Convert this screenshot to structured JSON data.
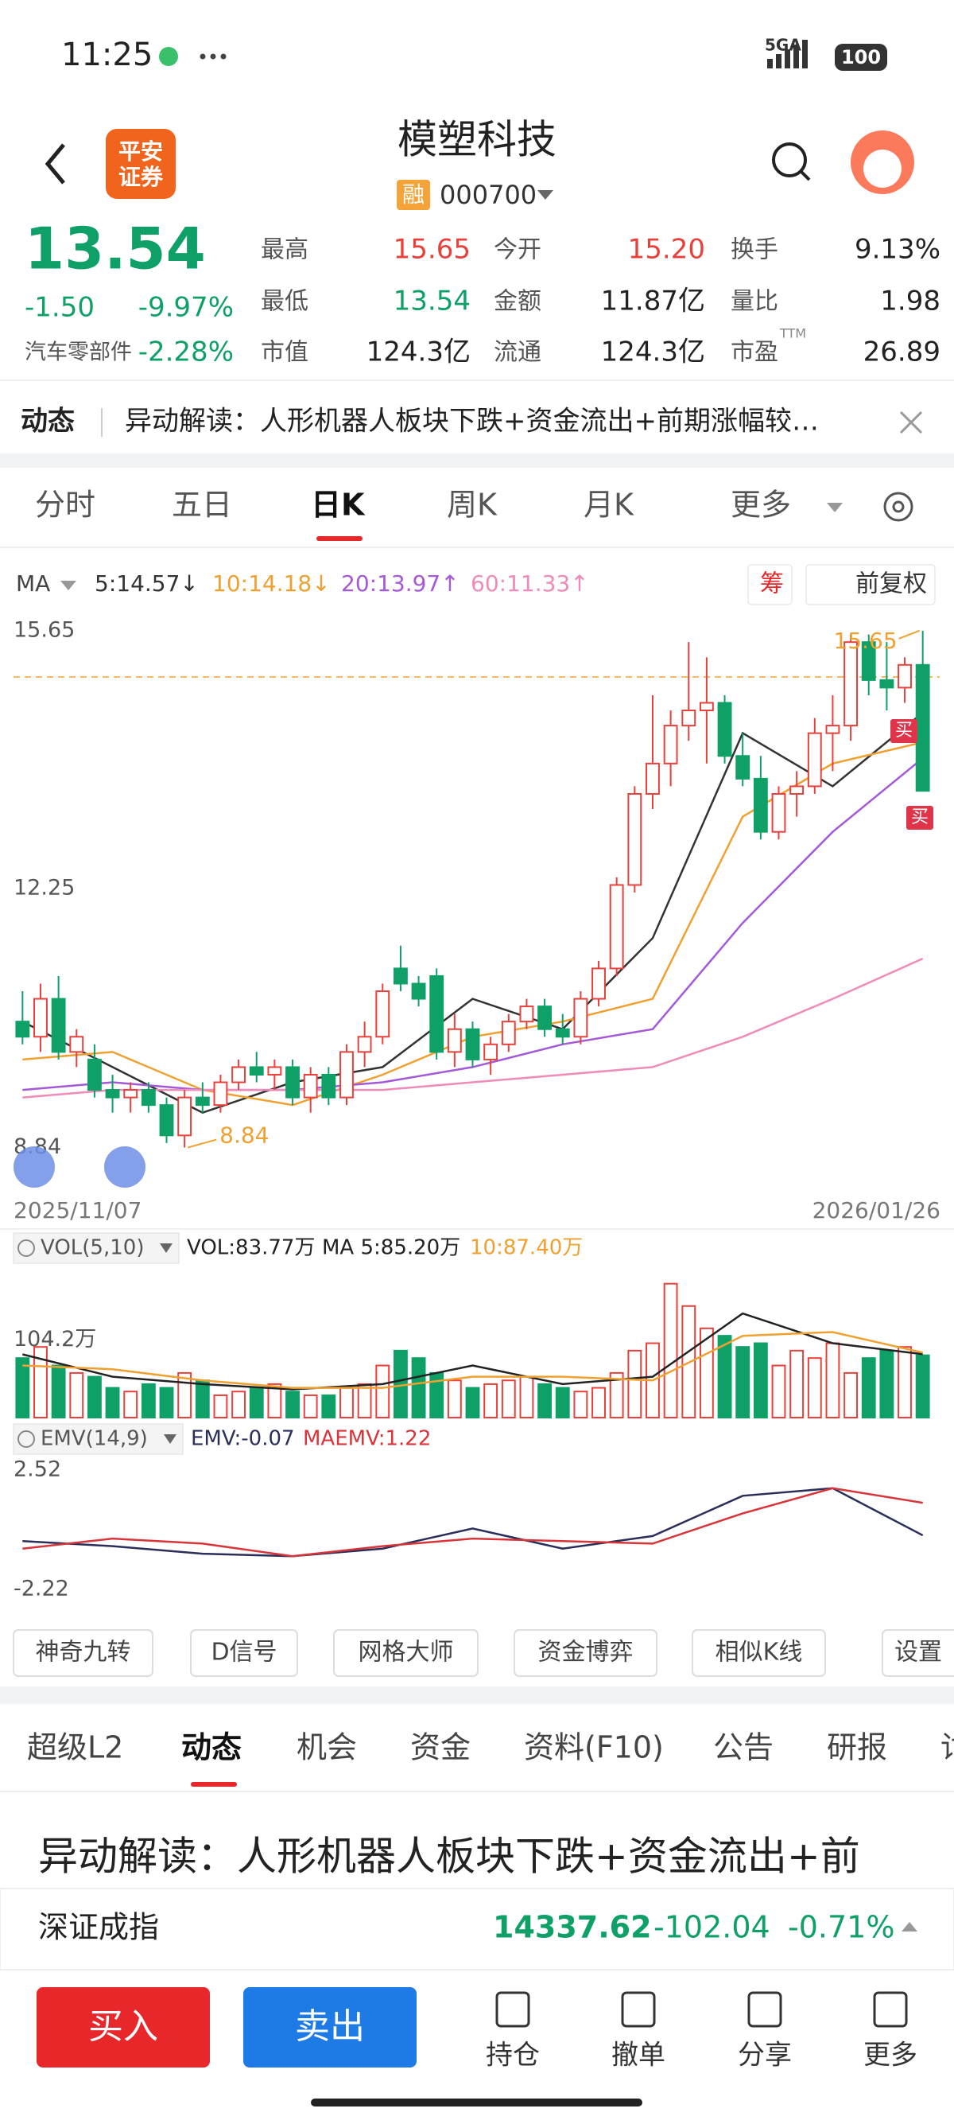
{
  "status": {
    "time": "11:25",
    "network": "5GA",
    "battery": "100"
  },
  "header": {
    "logo": [
      "平安",
      "证券"
    ],
    "title": "模塑科技",
    "badge": "融",
    "code": "000700"
  },
  "quote": {
    "price": "13.54",
    "change": "-1.50",
    "pct": "-9.97%",
    "sector": "汽车零部件",
    "sector_pct": "-2.28%",
    "ttm": "TTM",
    "stats": [
      {
        "label": "最高",
        "value": "15.65",
        "color": "#e8413c"
      },
      {
        "label": "今开",
        "value": "15.20",
        "color": "#e8413c"
      },
      {
        "label": "换手",
        "value": "9.13%",
        "color": "#222"
      },
      {
        "label": "最低",
        "value": "13.54",
        "color": "#0fa067"
      },
      {
        "label": "金额",
        "value": "11.87亿",
        "color": "#222"
      },
      {
        "label": "量比",
        "value": "1.98",
        "color": "#222"
      },
      {
        "label": "市值",
        "value": "124.3亿",
        "color": "#222"
      },
      {
        "label": "流通",
        "value": "124.3亿",
        "color": "#222"
      },
      {
        "label": "市盈",
        "value": "26.89",
        "color": "#222"
      }
    ]
  },
  "news": {
    "label": "动态",
    "text": "异动解读：人形机器人板块下跌+资金流出+前期涨幅较…"
  },
  "tabs": {
    "items": [
      "分时",
      "五日",
      "日K",
      "周K",
      "月K",
      "更多"
    ],
    "active": 2
  },
  "chart_data": [
    {
      "type": "candlestick",
      "legend_label": "MA",
      "buttons": [
        "筹",
        "前复权"
      ],
      "up_color": "#e8413c",
      "down_color": "#0fa067",
      "candles": [
        [
          10.5,
          10.9,
          10.2,
          10.3
        ],
        [
          10.3,
          11.0,
          10.1,
          10.8
        ],
        [
          10.8,
          11.1,
          10.0,
          10.1
        ],
        [
          10.1,
          10.4,
          9.9,
          10.3
        ],
        [
          10.0,
          10.2,
          9.5,
          9.6
        ],
        [
          9.6,
          9.8,
          9.3,
          9.5
        ],
        [
          9.5,
          9.7,
          9.3,
          9.6
        ],
        [
          9.6,
          9.7,
          9.3,
          9.4
        ],
        [
          9.4,
          9.5,
          8.9,
          9.0
        ],
        [
          9.0,
          9.6,
          8.84,
          9.5
        ],
        [
          9.5,
          9.7,
          9.3,
          9.4
        ],
        [
          9.4,
          9.8,
          9.3,
          9.7
        ],
        [
          9.7,
          10.0,
          9.6,
          9.9
        ],
        [
          9.9,
          10.1,
          9.7,
          9.8
        ],
        [
          9.8,
          10.0,
          9.6,
          9.9
        ],
        [
          9.9,
          10.0,
          9.4,
          9.5
        ],
        [
          9.5,
          9.9,
          9.3,
          9.8
        ],
        [
          9.8,
          9.9,
          9.4,
          9.5
        ],
        [
          9.5,
          10.2,
          9.4,
          10.1
        ],
        [
          10.1,
          10.5,
          9.9,
          10.3
        ],
        [
          10.3,
          11.0,
          10.2,
          10.9
        ],
        [
          11.2,
          11.5,
          10.9,
          11.0
        ],
        [
          11.0,
          11.1,
          10.7,
          10.8
        ],
        [
          11.1,
          11.2,
          10.0,
          10.1
        ],
        [
          10.1,
          10.6,
          9.9,
          10.4
        ],
        [
          10.4,
          10.5,
          9.9,
          10.0
        ],
        [
          10.0,
          10.3,
          9.8,
          10.2
        ],
        [
          10.2,
          10.6,
          10.1,
          10.5
        ],
        [
          10.5,
          10.8,
          10.4,
          10.7
        ],
        [
          10.7,
          10.8,
          10.3,
          10.4
        ],
        [
          10.4,
          10.6,
          10.2,
          10.3
        ],
        [
          10.3,
          10.9,
          10.2,
          10.8
        ],
        [
          10.8,
          11.3,
          10.7,
          11.2
        ],
        [
          11.2,
          12.4,
          11.1,
          12.3
        ],
        [
          12.3,
          13.6,
          12.2,
          13.5
        ],
        [
          13.5,
          14.8,
          13.3,
          13.9
        ],
        [
          13.9,
          14.6,
          13.6,
          14.4
        ],
        [
          14.4,
          15.5,
          14.2,
          14.6
        ],
        [
          14.6,
          15.3,
          13.9,
          14.7
        ],
        [
          14.7,
          14.8,
          13.9,
          14.0
        ],
        [
          14.0,
          14.3,
          13.6,
          13.7
        ],
        [
          13.7,
          14.0,
          12.9,
          13.0
        ],
        [
          13.0,
          13.6,
          12.9,
          13.5
        ],
        [
          13.5,
          13.8,
          13.2,
          13.6
        ],
        [
          13.6,
          14.5,
          13.5,
          14.3
        ],
        [
          14.3,
          14.8,
          13.8,
          14.4
        ],
        [
          14.4,
          15.6,
          14.2,
          15.5
        ],
        [
          15.5,
          15.6,
          14.8,
          15.0
        ],
        [
          15.0,
          15.5,
          14.6,
          14.9
        ],
        [
          14.9,
          15.3,
          14.7,
          15.2
        ],
        [
          15.2,
          15.65,
          13.54,
          13.54
        ]
      ],
      "line_x": [
        0,
        5,
        10,
        15,
        20,
        25,
        30,
        35,
        40,
        45,
        50
      ],
      "series": [
        {
          "name": "5:14.57↓",
          "color": "#333333",
          "values": [
            10.5,
            9.9,
            9.3,
            9.7,
            9.9,
            10.8,
            10.4,
            11.6,
            14.3,
            13.6,
            14.57
          ]
        },
        {
          "name": "10:14.18↓",
          "color": "#f0a030",
          "values": [
            10.0,
            10.1,
            9.6,
            9.4,
            9.8,
            10.3,
            10.5,
            10.8,
            13.2,
            13.9,
            14.18
          ]
        },
        {
          "name": "20:13.97↑",
          "color": "#a45ad8",
          "values": [
            9.6,
            9.7,
            9.6,
            9.6,
            9.7,
            9.9,
            10.2,
            10.4,
            11.8,
            13.0,
            13.97
          ]
        },
        {
          "name": "60:11.33↑",
          "color": "#ef8bb8",
          "values": [
            9.5,
            9.6,
            9.6,
            9.6,
            9.6,
            9.7,
            9.8,
            9.9,
            10.3,
            10.8,
            11.33
          ]
        }
      ],
      "prev_close": 15.04,
      "high_label": "15.65",
      "low_label": "8.84",
      "signals": [
        "买",
        "买"
      ],
      "ylim": [
        8.5,
        15.9
      ],
      "yticks": [
        15.65,
        12.25,
        8.84
      ],
      "x_labels": [
        "2025/11/07",
        "2026/01/26"
      ]
    },
    {
      "type": "bar",
      "label": "VOL(5,10)",
      "legend": "VOL:83.77万",
      "up_color": "#e8413c",
      "down_color": "#0fa067",
      "values": [
        80,
        95,
        70,
        60,
        55,
        40,
        35,
        45,
        40,
        60,
        50,
        30,
        35,
        40,
        45,
        35,
        30,
        30,
        40,
        45,
        70,
        90,
        80,
        60,
        50,
        40,
        45,
        50,
        55,
        45,
        40,
        35,
        40,
        60,
        90,
        100,
        180,
        150,
        120,
        110,
        95,
        100,
        70,
        90,
        80,
        100,
        60,
        80,
        90,
        95,
        83.77
      ],
      "line_x": [
        0,
        5,
        10,
        15,
        20,
        25,
        30,
        35,
        40,
        45,
        50
      ],
      "series": [
        {
          "name": "MA 5:85.20万",
          "color": "#222222",
          "values": [
            85,
            55,
            45,
            38,
            45,
            70,
            45,
            55,
            140,
            100,
            85.2
          ]
        },
        {
          "name": "10:87.40万",
          "color": "#f0a030",
          "values": [
            70,
            65,
            50,
            40,
            40,
            55,
            55,
            50,
            110,
            115,
            87.4
          ]
        }
      ],
      "ylim": [
        0,
        200
      ],
      "yticks": [
        {
          "value": 104.2,
          "label": "104.2万"
        }
      ]
    },
    {
      "type": "line",
      "label": "EMV(14,9)",
      "line_x": [
        0,
        5,
        10,
        15,
        20,
        25,
        30,
        35,
        40,
        45,
        50
      ],
      "series": [
        {
          "name": "EMV:-0.07",
          "color": "#2a2f5a",
          "values": [
            -0.3,
            -0.5,
            -0.8,
            -0.9,
            -0.6,
            0.2,
            -0.6,
            -0.1,
            1.5,
            1.8,
            -0.07
          ]
        },
        {
          "name": "MAEMV:1.22",
          "color": "#d8353a",
          "values": [
            -0.6,
            -0.2,
            -0.4,
            -0.9,
            -0.5,
            -0.2,
            -0.3,
            -0.4,
            0.8,
            1.8,
            1.22
          ]
        }
      ],
      "ylim": [
        -2.22,
        2.52
      ],
      "yticks": [
        2.52,
        -2.22
      ]
    }
  ],
  "tools": [
    "神奇九转",
    "D信号",
    "网格大师",
    "资金博弈",
    "相似K线",
    "设置"
  ],
  "subtabs": {
    "items": [
      "超级L2",
      "动态",
      "机会",
      "资金",
      "资料(F10)",
      "公告",
      "研报",
      "讨"
    ],
    "active": 1
  },
  "article": "异动解读：人形机器人板块下跌+资金流出+前",
  "index": {
    "name": "深证成指",
    "value": "14337.62",
    "change": "-102.04",
    "pct": "-0.71%"
  },
  "bottom": {
    "buy": "买入",
    "sell": "卖出",
    "actions": [
      "持仓",
      "撤单",
      "分享",
      "更多"
    ]
  }
}
